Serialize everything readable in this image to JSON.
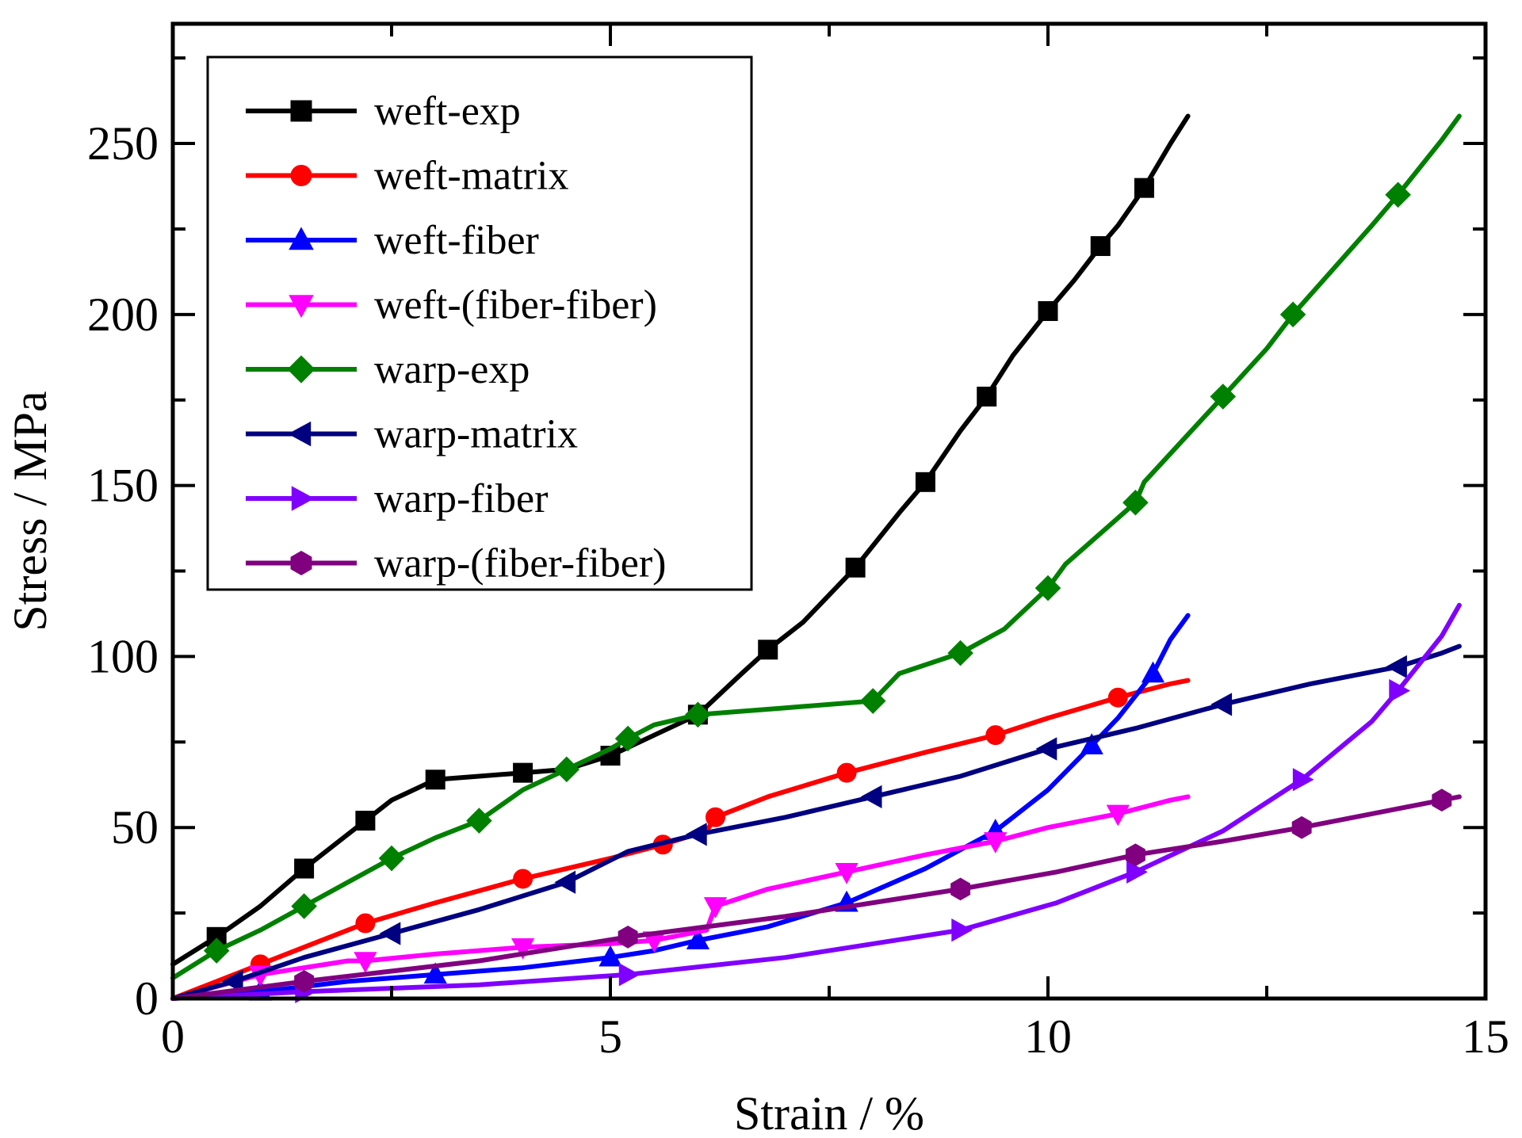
{
  "chart_data": {
    "type": "line",
    "xlabel": "Strain / %",
    "ylabel": "Stress / MPa",
    "xlim": [
      0,
      15
    ],
    "ylim": [
      0,
      285
    ],
    "xticks": [
      0,
      5,
      10,
      15
    ],
    "yticks": [
      0,
      50,
      100,
      150,
      200,
      250
    ],
    "legend_position": "top-left",
    "grid": false,
    "series": [
      {
        "name": "weft-exp",
        "color": "#000000",
        "marker": "square",
        "x": [
          0,
          0.5,
          1,
          1.5,
          2,
          2.2,
          2.5,
          3,
          3.5,
          4,
          4.5,
          5,
          5.5,
          6,
          6.5,
          6.8,
          7.2,
          7.8,
          8.3,
          8.6,
          9,
          9.3,
          9.6,
          10,
          10.3,
          10.6,
          10.8,
          11.1,
          11.4,
          11.6
        ],
        "y": [
          10,
          18,
          27,
          38,
          48,
          52,
          58,
          64,
          65,
          66,
          67,
          71,
          77,
          83,
          95,
          102,
          110,
          126,
          142,
          151,
          166,
          176,
          188,
          201,
          210,
          220,
          226,
          237,
          250,
          258
        ]
      },
      {
        "name": "weft-matrix",
        "color": "#ff0000",
        "marker": "circle",
        "x": [
          0,
          1,
          2,
          2.2,
          3,
          4,
          5,
          5.6,
          6.1,
          6.2,
          6.8,
          7.7,
          8.6,
          9.4,
          10,
          10.8,
          11.4,
          11.6
        ],
        "y": [
          0,
          10,
          20,
          22,
          28,
          35,
          41,
          45,
          49,
          53,
          59,
          66,
          72,
          77,
          82,
          88,
          92,
          93
        ]
      },
      {
        "name": "weft-fiber",
        "color": "#0000ff",
        "marker": "triangle-up",
        "x": [
          0,
          1,
          2,
          3,
          4,
          5,
          5.5,
          6,
          6.8,
          7.7,
          8.6,
          9.4,
          10,
          10.5,
          10.8,
          11.2,
          11.4,
          11.6
        ],
        "y": [
          0,
          2,
          5,
          7,
          9,
          12,
          14,
          17,
          21,
          28,
          38,
          49,
          61,
          74,
          82,
          95,
          105,
          112
        ]
      },
      {
        "name": "weft-(fiber-fiber)",
        "color": "#ff00ff",
        "marker": "triangle-down",
        "x": [
          0,
          1,
          2,
          2.2,
          3,
          4,
          5,
          5.5,
          6.1,
          6.2,
          6.8,
          7.7,
          8.6,
          9.4,
          10,
          10.8,
          11.4,
          11.6
        ],
        "y": [
          0,
          7,
          11,
          11,
          13,
          15,
          16,
          17,
          20,
          27,
          32,
          37,
          42,
          46,
          50,
          54,
          58,
          59
        ]
      },
      {
        "name": "warp-exp",
        "color": "#008000",
        "marker": "diamond",
        "x": [
          0,
          0.5,
          1,
          1.5,
          2,
          2.5,
          3,
          3.5,
          4,
          4.5,
          5,
          5.2,
          5.5,
          6,
          7,
          8,
          8.3,
          9,
          9.5,
          10,
          10.2,
          11,
          11.1,
          12,
          12.5,
          12.8,
          13.7,
          14,
          14.5,
          14.7
        ],
        "y": [
          6,
          14,
          20,
          27,
          34,
          41,
          47,
          52,
          61,
          67,
          73,
          76,
          80,
          83,
          85,
          87,
          95,
          101,
          108,
          120,
          127,
          145,
          151,
          176,
          190,
          200,
          226,
          235,
          251,
          258
        ]
      },
      {
        "name": "warp-matrix",
        "color": "#000080",
        "marker": "triangle-left",
        "x": [
          0,
          0.7,
          1.5,
          2.5,
          3.5,
          4.5,
          5.2,
          6,
          7,
          8,
          9,
          10,
          11,
          12,
          13,
          14,
          14.5,
          14.7
        ],
        "y": [
          0,
          5,
          12,
          19,
          26,
          34,
          43,
          48,
          53,
          59,
          65,
          73,
          79,
          86,
          92,
          97,
          101,
          103
        ]
      },
      {
        "name": "warp-fiber",
        "color": "#8000ff",
        "marker": "triangle-right",
        "x": [
          0,
          1.5,
          3.5,
          5.2,
          7,
          9,
          10.1,
          11,
          12,
          12.9,
          13.7,
          14,
          14.5,
          14.7
        ],
        "y": [
          0,
          2,
          4,
          7,
          12,
          20,
          28,
          37,
          49,
          64,
          81,
          90,
          106,
          115
        ]
      },
      {
        "name": "warp-(fiber-fiber)",
        "color": "#800080",
        "marker": "hexagon",
        "x": [
          0,
          1.5,
          3.5,
          5.2,
          7,
          9,
          10.1,
          11,
          12,
          12.9,
          13.7,
          14.5,
          14.7
        ],
        "y": [
          0,
          5,
          11,
          18,
          24,
          32,
          37,
          42,
          46,
          50,
          54,
          58,
          59
        ]
      }
    ]
  }
}
